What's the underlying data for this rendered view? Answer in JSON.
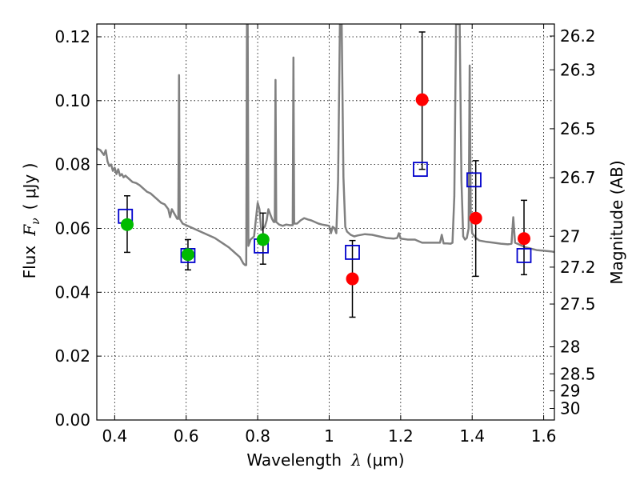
{
  "chart_data": {
    "type": "scatter",
    "xlabel_prefix": "Wavelength",
    "xlabel_symbol": "λ",
    "xlabel_unit": "(μm)",
    "ylabel_prefix": "Flux",
    "ylabel_symbol": "F",
    "ylabel_subscript": "ν",
    "ylabel_unit": "( μJy )",
    "y2label": "Magnitude (AB)",
    "xlim": [
      0.35,
      1.63
    ],
    "ylim": [
      0.0,
      0.124
    ],
    "grid": true,
    "x_ticks": [
      {
        "value": 0.4,
        "label": "0.4"
      },
      {
        "value": 0.6,
        "label": "0.6"
      },
      {
        "value": 0.8,
        "label": "0.8"
      },
      {
        "value": 1.0,
        "label": "1"
      },
      {
        "value": 1.2,
        "label": "1.2"
      },
      {
        "value": 1.4,
        "label": "1.4"
      },
      {
        "value": 1.6,
        "label": "1.6"
      }
    ],
    "y_ticks": [
      {
        "value": 0.0,
        "label": "0.00"
      },
      {
        "value": 0.02,
        "label": "0.02"
      },
      {
        "value": 0.04,
        "label": "0.04"
      },
      {
        "value": 0.06,
        "label": "0.06"
      },
      {
        "value": 0.08,
        "label": "0.08"
      },
      {
        "value": 0.1,
        "label": "0.10"
      },
      {
        "value": 0.12,
        "label": "0.12"
      }
    ],
    "y2_ticks": [
      {
        "mag": 26.2,
        "label": "26.2"
      },
      {
        "mag": 26.3,
        "label": "26.3"
      },
      {
        "mag": 26.5,
        "label": "26.5"
      },
      {
        "mag": 26.7,
        "label": "26.7"
      },
      {
        "mag": 27.0,
        "label": "27"
      },
      {
        "mag": 27.2,
        "label": "27.2"
      },
      {
        "mag": 27.5,
        "label": "27.5"
      },
      {
        "mag": 28.0,
        "label": "28"
      },
      {
        "mag": 28.5,
        "label": "28.5"
      },
      {
        "mag": 29.0,
        "label": "29"
      },
      {
        "mag": 30.0,
        "label": "30"
      }
    ],
    "colors": {
      "model": "#808080",
      "green": "#00bb00",
      "red": "#ff0000",
      "square": "#0000cc",
      "errorbar": "#000000"
    },
    "model_spectrum": [
      [
        0.35,
        0.085
      ],
      [
        0.36,
        0.0845
      ],
      [
        0.37,
        0.083
      ],
      [
        0.375,
        0.0845
      ],
      [
        0.38,
        0.081
      ],
      [
        0.385,
        0.0795
      ],
      [
        0.39,
        0.08
      ],
      [
        0.395,
        0.078
      ],
      [
        0.4,
        0.079
      ],
      [
        0.405,
        0.077
      ],
      [
        0.41,
        0.0785
      ],
      [
        0.415,
        0.0765
      ],
      [
        0.42,
        0.077
      ],
      [
        0.425,
        0.076
      ],
      [
        0.43,
        0.0765
      ],
      [
        0.44,
        0.0755
      ],
      [
        0.45,
        0.0745
      ],
      [
        0.46,
        0.0742
      ],
      [
        0.47,
        0.0735
      ],
      [
        0.48,
        0.0725
      ],
      [
        0.49,
        0.0715
      ],
      [
        0.5,
        0.071
      ],
      [
        0.51,
        0.07
      ],
      [
        0.52,
        0.069
      ],
      [
        0.525,
        0.0685
      ],
      [
        0.53,
        0.068
      ],
      [
        0.54,
        0.0675
      ],
      [
        0.55,
        0.066
      ],
      [
        0.555,
        0.0635
      ],
      [
        0.56,
        0.066
      ],
      [
        0.57,
        0.064
      ],
      [
        0.575,
        0.063
      ],
      [
        0.578,
        0.063
      ],
      [
        0.58,
        0.108
      ],
      [
        0.582,
        0.063
      ],
      [
        0.59,
        0.0615
      ],
      [
        0.6,
        0.061
      ],
      [
        0.62,
        0.06
      ],
      [
        0.64,
        0.059
      ],
      [
        0.66,
        0.058
      ],
      [
        0.68,
        0.057
      ],
      [
        0.7,
        0.0555
      ],
      [
        0.72,
        0.054
      ],
      [
        0.74,
        0.052
      ],
      [
        0.75,
        0.051
      ],
      [
        0.76,
        0.049
      ],
      [
        0.765,
        0.0485
      ],
      [
        0.768,
        0.0485
      ],
      [
        0.77,
        0.124
      ],
      [
        0.772,
        0.124
      ],
      [
        0.774,
        0.0545
      ],
      [
        0.78,
        0.0565
      ],
      [
        0.79,
        0.0575
      ],
      [
        0.8,
        0.068
      ],
      [
        0.805,
        0.066
      ],
      [
        0.81,
        0.0595
      ],
      [
        0.82,
        0.0605
      ],
      [
        0.825,
        0.0625
      ],
      [
        0.83,
        0.066
      ],
      [
        0.835,
        0.0645
      ],
      [
        0.84,
        0.063
      ],
      [
        0.845,
        0.062
      ],
      [
        0.848,
        0.062
      ],
      [
        0.85,
        0.1065
      ],
      [
        0.852,
        0.062
      ],
      [
        0.86,
        0.0612
      ],
      [
        0.87,
        0.0608
      ],
      [
        0.88,
        0.0612
      ],
      [
        0.89,
        0.061
      ],
      [
        0.898,
        0.061
      ],
      [
        0.9,
        0.1135
      ],
      [
        0.902,
        0.0615
      ],
      [
        0.91,
        0.0615
      ],
      [
        0.92,
        0.0625
      ],
      [
        0.93,
        0.0632
      ],
      [
        0.94,
        0.0628
      ],
      [
        0.95,
        0.0625
      ],
      [
        0.96,
        0.062
      ],
      [
        0.97,
        0.0615
      ],
      [
        0.98,
        0.0612
      ],
      [
        0.99,
        0.061
      ],
      [
        1.0,
        0.0608
      ],
      [
        1.005,
        0.0585
      ],
      [
        1.01,
        0.0605
      ],
      [
        1.015,
        0.06
      ],
      [
        1.02,
        0.0585
      ],
      [
        1.025,
        0.075
      ],
      [
        1.03,
        0.124
      ],
      [
        1.035,
        0.124
      ],
      [
        1.04,
        0.076
      ],
      [
        1.045,
        0.0605
      ],
      [
        1.05,
        0.059
      ],
      [
        1.06,
        0.058
      ],
      [
        1.07,
        0.0575
      ],
      [
        1.08,
        0.0578
      ],
      [
        1.1,
        0.0582
      ],
      [
        1.12,
        0.058
      ],
      [
        1.14,
        0.0575
      ],
      [
        1.16,
        0.057
      ],
      [
        1.18,
        0.0568
      ],
      [
        1.19,
        0.057
      ],
      [
        1.195,
        0.0585
      ],
      [
        1.2,
        0.0568
      ],
      [
        1.22,
        0.0565
      ],
      [
        1.24,
        0.0565
      ],
      [
        1.25,
        0.056
      ],
      [
        1.26,
        0.0555
      ],
      [
        1.28,
        0.0555
      ],
      [
        1.3,
        0.0555
      ],
      [
        1.31,
        0.0555
      ],
      [
        1.315,
        0.058
      ],
      [
        1.32,
        0.0553
      ],
      [
        1.33,
        0.0553
      ],
      [
        1.34,
        0.0552
      ],
      [
        1.345,
        0.0555
      ],
      [
        1.35,
        0.07
      ],
      [
        1.355,
        0.124
      ],
      [
        1.365,
        0.124
      ],
      [
        1.37,
        0.075
      ],
      [
        1.375,
        0.0575
      ],
      [
        1.38,
        0.0565
      ],
      [
        1.385,
        0.057
      ],
      [
        1.39,
        0.06
      ],
      [
        1.393,
        0.111
      ],
      [
        1.396,
        0.065
      ],
      [
        1.4,
        0.0585
      ],
      [
        1.41,
        0.057
      ],
      [
        1.42,
        0.0562
      ],
      [
        1.44,
        0.0558
      ],
      [
        1.46,
        0.0555
      ],
      [
        1.48,
        0.0552
      ],
      [
        1.5,
        0.055
      ],
      [
        1.51,
        0.0552
      ],
      [
        1.515,
        0.0635
      ],
      [
        1.52,
        0.0555
      ],
      [
        1.53,
        0.055
      ],
      [
        1.54,
        0.0545
      ],
      [
        1.55,
        0.054
      ],
      [
        1.56,
        0.0538
      ],
      [
        1.57,
        0.0535
      ],
      [
        1.58,
        0.0532
      ],
      [
        1.6,
        0.053
      ],
      [
        1.62,
        0.0528
      ],
      [
        1.63,
        0.0526
      ]
    ],
    "observed_points": [
      {
        "x": 0.435,
        "y": 0.0612,
        "err_low": 0.0525,
        "err_high": 0.0702,
        "color": "green"
      },
      {
        "x": 0.605,
        "y": 0.0518,
        "err_low": 0.047,
        "err_high": 0.0565,
        "color": "green"
      },
      {
        "x": 0.815,
        "y": 0.0565,
        "err_low": 0.0488,
        "err_high": 0.0648,
        "color": "green"
      },
      {
        "x": 1.065,
        "y": 0.0442,
        "err_low": 0.0322,
        "err_high": 0.0562,
        "color": "red"
      },
      {
        "x": 1.26,
        "y": 0.1003,
        "err_low": 0.0785,
        "err_high": 0.1215,
        "color": "red"
      },
      {
        "x": 1.41,
        "y": 0.0632,
        "err_low": 0.045,
        "err_high": 0.0812,
        "color": "red"
      },
      {
        "x": 1.545,
        "y": 0.0568,
        "err_low": 0.0455,
        "err_high": 0.0688,
        "color": "red"
      }
    ],
    "model_photometry": [
      {
        "x": 0.43,
        "y": 0.0638
      },
      {
        "x": 0.605,
        "y": 0.0515
      },
      {
        "x": 0.81,
        "y": 0.0545
      },
      {
        "x": 1.065,
        "y": 0.0525
      },
      {
        "x": 1.255,
        "y": 0.0785
      },
      {
        "x": 1.405,
        "y": 0.0752
      },
      {
        "x": 1.545,
        "y": 0.0515
      }
    ]
  }
}
